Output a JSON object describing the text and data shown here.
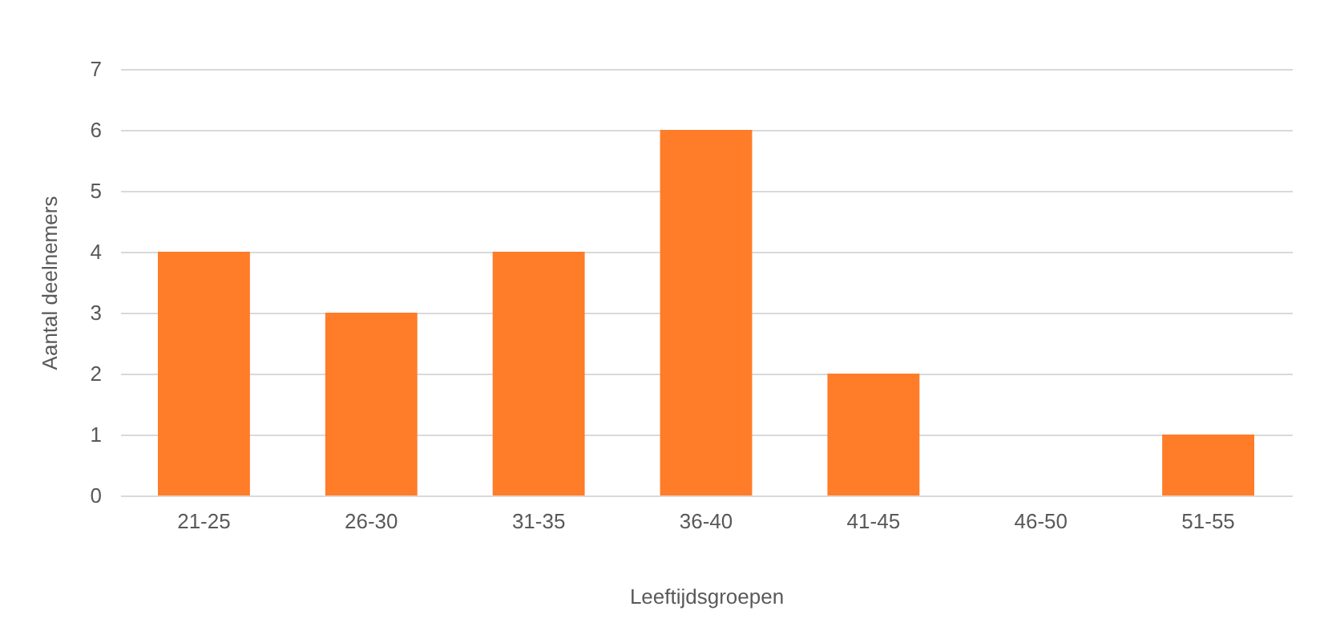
{
  "chart_data": {
    "type": "bar",
    "xlabel": "Leeftijdsgroepen",
    "ylabel": "Aantal deelnemers",
    "categories": [
      "21-25",
      "26-30",
      "31-35",
      "36-40",
      "41-45",
      "46-50",
      "51-55"
    ],
    "values": [
      4,
      3,
      4,
      6,
      2,
      0,
      1
    ],
    "color": "#ff7c28",
    "ylim": [
      0,
      7
    ],
    "yticks": [
      0,
      1,
      2,
      3,
      4,
      5,
      6,
      7
    ],
    "grid": "y"
  }
}
